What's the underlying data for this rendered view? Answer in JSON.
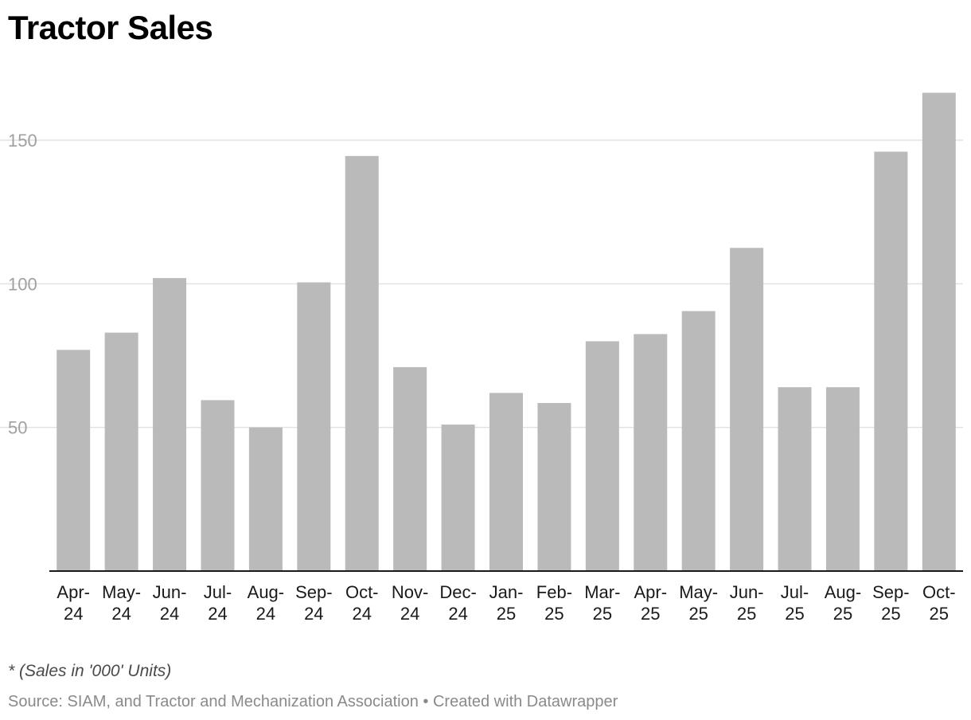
{
  "title": "Tractor Sales",
  "note": "* (Sales in '000' Units)",
  "footer": {
    "source": "Source: SIAM, and Tractor and Mechanization Association",
    "separator": " • ",
    "credit": "Created with Datawrapper"
  },
  "colors": {
    "bar": "#bababa",
    "grid": "#e2e2e2",
    "axis": "#1a1a1a",
    "tick_label": "#a0a0a0",
    "category_label": "#1a1a1a"
  },
  "chart_data": {
    "type": "bar",
    "title": "Tractor Sales",
    "xlabel": "",
    "ylabel": "",
    "ylim": [
      0,
      170
    ],
    "yticks": [
      50,
      100,
      150
    ],
    "grid": true,
    "legend": "none",
    "categories": [
      [
        "Apr-",
        "24"
      ],
      [
        "May-",
        "24"
      ],
      [
        "Jun-",
        "24"
      ],
      [
        "Jul-",
        "24"
      ],
      [
        "Aug-",
        "24"
      ],
      [
        "Sep-",
        "24"
      ],
      [
        "Oct-",
        "24"
      ],
      [
        "Nov-",
        "24"
      ],
      [
        "Dec-",
        "24"
      ],
      [
        "Jan-",
        "25"
      ],
      [
        "Feb-",
        "25"
      ],
      [
        "Mar-",
        "25"
      ],
      [
        "Apr-",
        "25"
      ],
      [
        "May-",
        "25"
      ],
      [
        "Jun-",
        "25"
      ],
      [
        "Jul-",
        "25"
      ],
      [
        "Aug-",
        "25"
      ],
      [
        "Sep-",
        "25"
      ],
      [
        "Oct-",
        "25"
      ]
    ],
    "series": [
      {
        "name": "Sales ('000 units)",
        "values": [
          77,
          83,
          102,
          59.5,
          50,
          100.5,
          144.5,
          71,
          51,
          62,
          58.5,
          80,
          82.5,
          90.5,
          112.5,
          64,
          64,
          146,
          166.5
        ]
      }
    ]
  }
}
